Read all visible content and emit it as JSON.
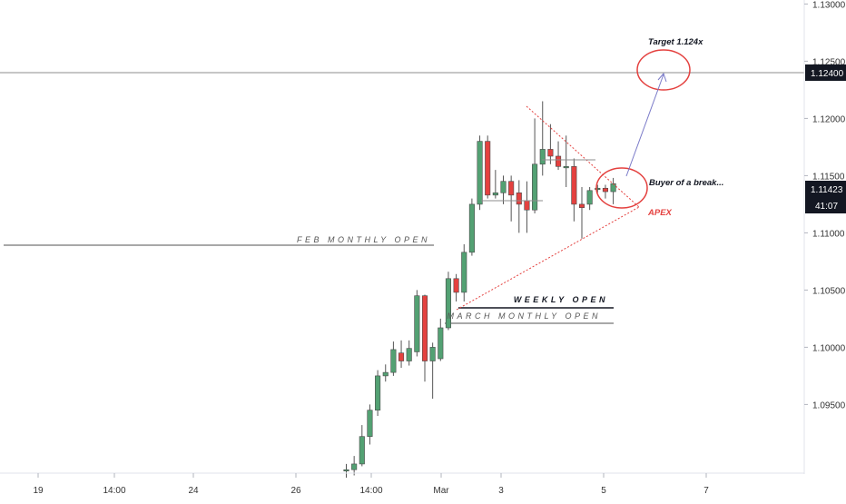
{
  "chart_data": {
    "type": "candlestick",
    "y_axis_ticks": [
      "1.13000",
      "1.12500",
      "1.12000",
      "1.11500",
      "1.11000",
      "1.10500",
      "1.10000",
      "1.09500"
    ],
    "x_axis_ticks": [
      "19",
      "14:00",
      "24",
      "26",
      "14:00",
      "Mar",
      "3",
      "5",
      "7"
    ],
    "price_label": "1.11423",
    "countdown_label": "41:07",
    "horizontal_line_label": "1.12400",
    "ylim": [
      1.0895,
      1.1305
    ],
    "candles": [
      {
        "o": 1.0892,
        "h": 1.0898,
        "l": 1.0886,
        "c": 1.0893
      },
      {
        "o": 1.0893,
        "h": 1.0905,
        "l": 1.0888,
        "c": 1.0898
      },
      {
        "o": 1.0898,
        "h": 1.0932,
        "l": 1.0896,
        "c": 1.0922
      },
      {
        "o": 1.0922,
        "h": 1.095,
        "l": 1.0915,
        "c": 1.0945
      },
      {
        "o": 1.0945,
        "h": 1.098,
        "l": 1.094,
        "c": 1.0975
      },
      {
        "o": 1.0975,
        "h": 1.0985,
        "l": 1.097,
        "c": 1.0978
      },
      {
        "o": 1.0978,
        "h": 1.1005,
        "l": 1.0975,
        "c": 1.0998
      },
      {
        "o": 1.0995,
        "h": 1.1006,
        "l": 1.0982,
        "c": 1.0988
      },
      {
        "o": 1.0988,
        "h": 1.1006,
        "l": 1.0984,
        "c": 1.0999
      },
      {
        "o": 1.0996,
        "h": 1.105,
        "l": 1.0992,
        "c": 1.1045
      },
      {
        "o": 1.1045,
        "h": 1.1046,
        "l": 1.097,
        "c": 1.0988
      },
      {
        "o": 1.0988,
        "h": 1.1004,
        "l": 1.0955,
        "c": 1.1
      },
      {
        "o": 1.099,
        "h": 1.1025,
        "l": 1.0988,
        "c": 1.1017
      },
      {
        "o": 1.1017,
        "h": 1.1066,
        "l": 1.1015,
        "c": 1.106
      },
      {
        "o": 1.106,
        "h": 1.1064,
        "l": 1.104,
        "c": 1.1048
      },
      {
        "o": 1.1048,
        "h": 1.109,
        "l": 1.104,
        "c": 1.1083
      },
      {
        "o": 1.1083,
        "h": 1.113,
        "l": 1.108,
        "c": 1.1125
      },
      {
        "o": 1.1125,
        "h": 1.1185,
        "l": 1.112,
        "c": 1.118
      },
      {
        "o": 1.118,
        "h": 1.1185,
        "l": 1.113,
        "c": 1.1133
      },
      {
        "o": 1.1133,
        "h": 1.1155,
        "l": 1.113,
        "c": 1.1135
      },
      {
        "o": 1.1135,
        "h": 1.115,
        "l": 1.1125,
        "c": 1.1145
      },
      {
        "o": 1.1145,
        "h": 1.115,
        "l": 1.111,
        "c": 1.1133
      },
      {
        "o": 1.1135,
        "h": 1.1146,
        "l": 1.11,
        "c": 1.1125
      },
      {
        "o": 1.1128,
        "h": 1.1145,
        "l": 1.11,
        "c": 1.112
      },
      {
        "o": 1.112,
        "h": 1.12,
        "l": 1.1117,
        "c": 1.116
      },
      {
        "o": 1.116,
        "h": 1.1215,
        "l": 1.115,
        "c": 1.1173
      },
      {
        "o": 1.1173,
        "h": 1.1195,
        "l": 1.116,
        "c": 1.1167
      },
      {
        "o": 1.1167,
        "h": 1.118,
        "l": 1.1155,
        "c": 1.1158
      },
      {
        "o": 1.1157,
        "h": 1.1185,
        "l": 1.114,
        "c": 1.1158
      },
      {
        "o": 1.1158,
        "h": 1.1165,
        "l": 1.111,
        "c": 1.1125
      },
      {
        "o": 1.1125,
        "h": 1.114,
        "l": 1.1095,
        "c": 1.1122
      },
      {
        "o": 1.1125,
        "h": 1.114,
        "l": 1.112,
        "c": 1.1137
      },
      {
        "o": 1.1138,
        "h": 1.1142,
        "l": 1.1135,
        "c": 1.1139
      },
      {
        "o": 1.1139,
        "h": 1.1142,
        "l": 1.113,
        "c": 1.1136
      },
      {
        "o": 1.1136,
        "h": 1.1148,
        "l": 1.1125,
        "c": 1.1143
      }
    ],
    "annotations": {
      "target_text": "Target 1.124x",
      "buyer_text": "Buyer of a break...",
      "apex_text": "APEX",
      "feb_open_text": "FEB MONTHLY OPEN",
      "weekly_open_text": "WEEKLY OPEN",
      "march_open_text": "MARCH MONTHLY OPEN"
    },
    "levels": {
      "target_line": 1.124,
      "feb_open": 1.1093,
      "weekly_open": 1.1043,
      "march_open": 1.103
    },
    "colors": {
      "bull": "#53a173",
      "bear": "#e4413f",
      "text_dark": "#333333",
      "label_bg": "#131722",
      "label_text": "#ffffff",
      "ellipse": "#e4413f",
      "triangle": "#e4413f",
      "arrow": "#7a7ac8"
    }
  }
}
